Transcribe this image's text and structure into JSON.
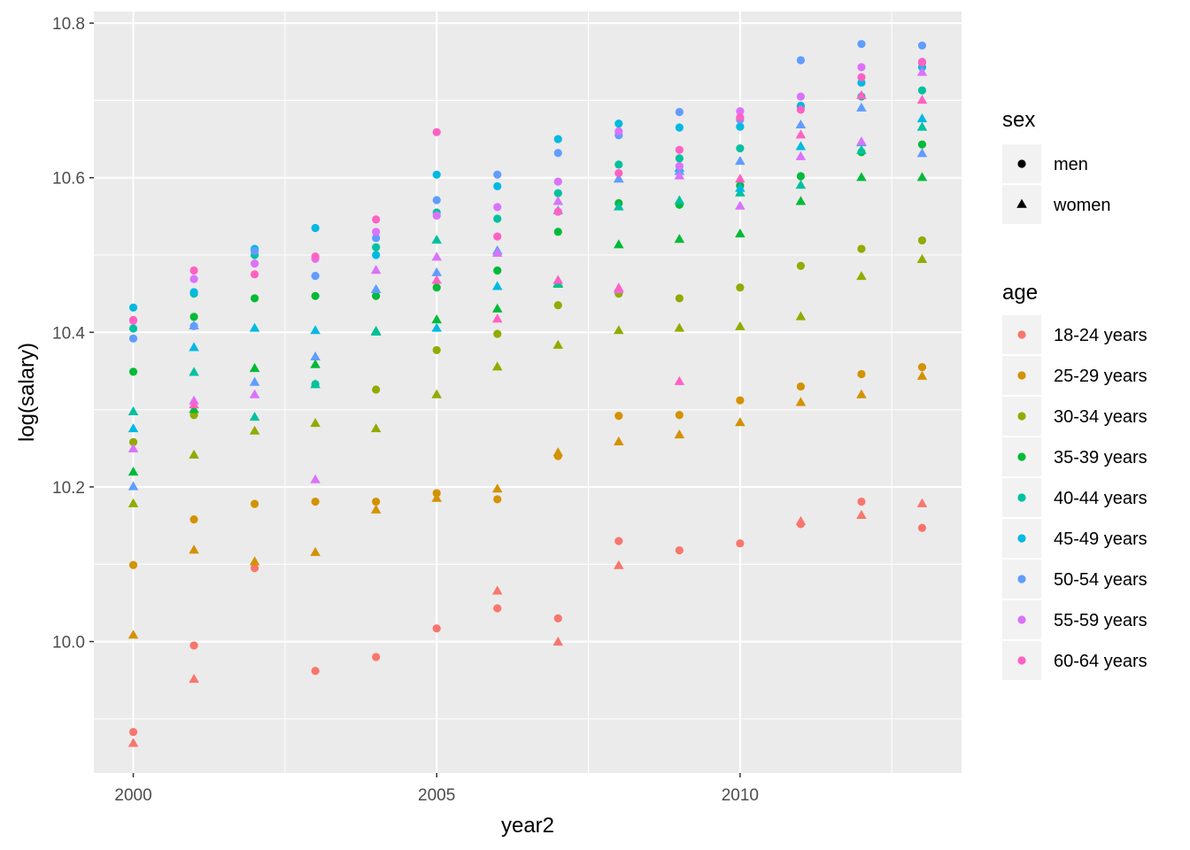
{
  "chart_data": {
    "type": "scatter",
    "title": "",
    "xlabel": "year2",
    "ylabel": "log(salary)",
    "xlim": [
      1999.35,
      2013.65
    ],
    "ylim": [
      9.83,
      10.815
    ],
    "x_ticks": [
      2000,
      2005,
      2010
    ],
    "x_tick_labels": [
      "2000",
      "2005",
      "2010"
    ],
    "y_ticks": [
      10.0,
      10.2,
      10.4,
      10.6,
      10.8
    ],
    "y_tick_labels": [
      "10.0",
      "10.2",
      "10.4",
      "10.6",
      "10.8"
    ],
    "grid": true,
    "legend_position": "right",
    "shape_legend": {
      "title": "sex",
      "entries": [
        {
          "label": "men",
          "shape": "circle"
        },
        {
          "label": "women",
          "shape": "triangle"
        }
      ]
    },
    "color_legend": {
      "title": "age",
      "entries": [
        {
          "label": "18-24 years",
          "color": "#F8766D"
        },
        {
          "label": "25-29 years",
          "color": "#D39200"
        },
        {
          "label": "30-34 years",
          "color": "#93AA00"
        },
        {
          "label": "35-39 years",
          "color": "#00BA38"
        },
        {
          "label": "40-44 years",
          "color": "#00C19F"
        },
        {
          "label": "45-49 years",
          "color": "#00B9E3"
        },
        {
          "label": "50-54 years",
          "color": "#619CFF"
        },
        {
          "label": "55-59 years",
          "color": "#DB72FB"
        },
        {
          "label": "60-64 years",
          "color": "#FF61C3"
        }
      ]
    },
    "x": [
      2000,
      2001,
      2002,
      2003,
      2004,
      2005,
      2006,
      2007,
      2008,
      2009,
      2010,
      2011,
      2012,
      2013
    ],
    "series": [
      {
        "age": "18-24 years",
        "sex": "men",
        "values": [
          9.883,
          9.995,
          10.095,
          9.962,
          9.98,
          10.017,
          10.043,
          10.03,
          10.13,
          10.118,
          10.127,
          10.152,
          10.181,
          10.147
        ]
      },
      {
        "age": "18-24 years",
        "sex": "women",
        "values": [
          9.868,
          9.951,
          null,
          null,
          null,
          null,
          10.065,
          9.999,
          10.098,
          null,
          null,
          10.155,
          10.163,
          10.178
        ]
      },
      {
        "age": "25-29 years",
        "sex": "men",
        "values": [
          10.099,
          10.158,
          10.178,
          10.181,
          10.181,
          10.192,
          10.184,
          10.24,
          10.292,
          10.293,
          10.312,
          10.33,
          10.346,
          10.355
        ]
      },
      {
        "age": "25-29 years",
        "sex": "women",
        "values": [
          10.008,
          10.118,
          10.103,
          10.115,
          10.17,
          10.185,
          10.197,
          10.244,
          10.258,
          10.267,
          10.283,
          10.309,
          10.319,
          10.343
        ]
      },
      {
        "age": "30-34 years",
        "sex": "men",
        "values": [
          10.258,
          10.293,
          null,
          null,
          10.326,
          10.377,
          10.398,
          10.435,
          10.45,
          10.444,
          10.458,
          10.486,
          10.508,
          10.519
        ]
      },
      {
        "age": "30-34 years",
        "sex": "women",
        "values": [
          10.178,
          10.241,
          10.272,
          10.282,
          10.275,
          10.319,
          10.355,
          10.383,
          10.402,
          10.405,
          10.407,
          10.42,
          10.472,
          10.494
        ]
      },
      {
        "age": "35-39 years",
        "sex": "men",
        "values": [
          10.349,
          10.42,
          10.444,
          10.447,
          10.447,
          10.458,
          10.48,
          10.53,
          10.567,
          10.565,
          10.59,
          10.602,
          10.633,
          10.643
        ]
      },
      {
        "age": "35-39 years",
        "sex": "women",
        "values": [
          10.219,
          10.3,
          10.353,
          10.358,
          10.401,
          10.416,
          10.43,
          10.462,
          10.513,
          10.52,
          10.527,
          10.569,
          10.6,
          10.6
        ]
      },
      {
        "age": "40-44 years",
        "sex": "men",
        "values": [
          10.405,
          10.45,
          10.5,
          10.333,
          10.51,
          10.555,
          10.547,
          10.58,
          10.617,
          10.625,
          10.638,
          10.692,
          10.705,
          10.713
        ]
      },
      {
        "age": "40-44 years",
        "sex": "women",
        "values": [
          10.297,
          10.348,
          10.29,
          10.332,
          10.4,
          10.519,
          10.505,
          10.463,
          10.562,
          10.57,
          10.58,
          10.59,
          10.635,
          10.665
        ]
      },
      {
        "age": "45-49 years",
        "sex": "men",
        "values": [
          10.432,
          10.452,
          10.508,
          10.535,
          10.5,
          10.604,
          10.589,
          10.65,
          10.67,
          10.665,
          10.666,
          10.693,
          10.723,
          10.743
        ]
      },
      {
        "age": "45-49 years",
        "sex": "women",
        "values": [
          10.275,
          10.38,
          10.405,
          10.402,
          10.455,
          10.405,
          10.459,
          null,
          10.598,
          10.612,
          10.586,
          10.64,
          10.645,
          10.676
        ]
      },
      {
        "age": "50-54 years",
        "sex": "men",
        "values": [
          10.392,
          10.408,
          10.505,
          10.473,
          10.522,
          10.571,
          10.604,
          10.632,
          10.655,
          10.685,
          10.675,
          10.752,
          10.773,
          10.771
        ]
      },
      {
        "age": "50-54 years",
        "sex": "women",
        "values": [
          10.2,
          10.408,
          10.335,
          10.368,
          10.455,
          10.477,
          10.505,
          10.557,
          10.598,
          10.608,
          10.621,
          10.668,
          10.69,
          10.631
        ]
      },
      {
        "age": "55-59 years",
        "sex": "men",
        "values": [
          10.415,
          10.469,
          10.489,
          10.495,
          10.53,
          10.551,
          10.562,
          10.595,
          10.66,
          10.615,
          10.686,
          10.705,
          10.743,
          10.75
        ]
      },
      {
        "age": "55-59 years",
        "sex": "women",
        "values": [
          10.249,
          10.311,
          10.319,
          10.209,
          10.48,
          10.497,
          10.502,
          10.569,
          10.455,
          10.602,
          10.563,
          10.627,
          10.646,
          10.736
        ]
      },
      {
        "age": "60-64 years",
        "sex": "men",
        "values": [
          10.416,
          10.48,
          10.475,
          10.498,
          10.546,
          10.659,
          10.524,
          10.556,
          10.606,
          10.636,
          10.678,
          10.688,
          10.73,
          10.749
        ]
      },
      {
        "age": "60-64 years",
        "sex": "women",
        "values": [
          null,
          10.306,
          null,
          null,
          null,
          10.467,
          10.417,
          10.467,
          10.457,
          10.336,
          10.598,
          10.655,
          10.706,
          10.7
        ]
      }
    ]
  }
}
